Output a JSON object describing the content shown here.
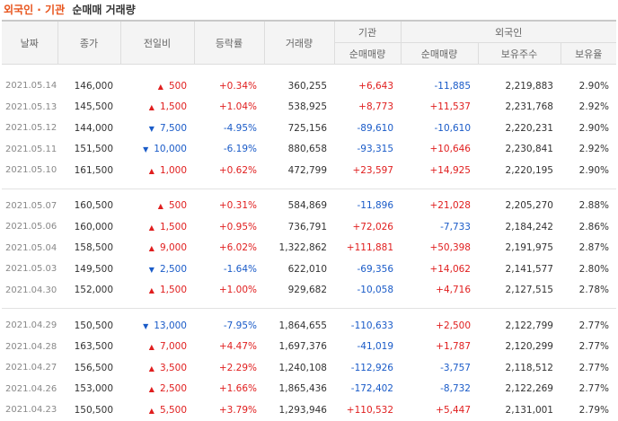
{
  "title": {
    "part1": "외국인 · 기관",
    "part2": "순매매 거래량"
  },
  "headers": {
    "date": "날짜",
    "close": "종가",
    "change": "전일비",
    "rate": "등락률",
    "volume": "거래량",
    "institution": "기관",
    "inst_net": "순매매량",
    "foreign": "외국인",
    "foreign_net": "순매매량",
    "holdings": "보유주수",
    "ratio": "보유율"
  },
  "colors": {
    "up": "#e01e1e",
    "down": "#1a5bc8",
    "accent_title": "#e8541c"
  },
  "groups": [
    {
      "rows": [
        {
          "date": "2021.05.14",
          "close": "146,000",
          "dir": "up",
          "change": "500",
          "rate": "+0.34%",
          "volume": "360,255",
          "inst": "+6,643",
          "foreign": "-11,885",
          "holdings": "2,219,883",
          "ratio": "2.90%"
        },
        {
          "date": "2021.05.13",
          "close": "145,500",
          "dir": "up",
          "change": "1,500",
          "rate": "+1.04%",
          "volume": "538,925",
          "inst": "+8,773",
          "foreign": "+11,537",
          "holdings": "2,231,768",
          "ratio": "2.92%"
        },
        {
          "date": "2021.05.12",
          "close": "144,000",
          "dir": "down",
          "change": "7,500",
          "rate": "-4.95%",
          "volume": "725,156",
          "inst": "-89,610",
          "foreign": "-10,610",
          "holdings": "2,220,231",
          "ratio": "2.90%"
        },
        {
          "date": "2021.05.11",
          "close": "151,500",
          "dir": "down",
          "change": "10,000",
          "rate": "-6.19%",
          "volume": "880,658",
          "inst": "-93,315",
          "foreign": "+10,646",
          "holdings": "2,230,841",
          "ratio": "2.92%"
        },
        {
          "date": "2021.05.10",
          "close": "161,500",
          "dir": "up",
          "change": "1,000",
          "rate": "+0.62%",
          "volume": "472,799",
          "inst": "+23,597",
          "foreign": "+14,925",
          "holdings": "2,220,195",
          "ratio": "2.90%"
        }
      ]
    },
    {
      "rows": [
        {
          "date": "2021.05.07",
          "close": "160,500",
          "dir": "up",
          "change": "500",
          "rate": "+0.31%",
          "volume": "584,869",
          "inst": "-11,896",
          "foreign": "+21,028",
          "holdings": "2,205,270",
          "ratio": "2.88%"
        },
        {
          "date": "2021.05.06",
          "close": "160,000",
          "dir": "up",
          "change": "1,500",
          "rate": "+0.95%",
          "volume": "736,791",
          "inst": "+72,026",
          "foreign": "-7,733",
          "holdings": "2,184,242",
          "ratio": "2.86%"
        },
        {
          "date": "2021.05.04",
          "close": "158,500",
          "dir": "up",
          "change": "9,000",
          "rate": "+6.02%",
          "volume": "1,322,862",
          "inst": "+111,881",
          "foreign": "+50,398",
          "holdings": "2,191,975",
          "ratio": "2.87%"
        },
        {
          "date": "2021.05.03",
          "close": "149,500",
          "dir": "down",
          "change": "2,500",
          "rate": "-1.64%",
          "volume": "622,010",
          "inst": "-69,356",
          "foreign": "+14,062",
          "holdings": "2,141,577",
          "ratio": "2.80%"
        },
        {
          "date": "2021.04.30",
          "close": "152,000",
          "dir": "up",
          "change": "1,500",
          "rate": "+1.00%",
          "volume": "929,682",
          "inst": "-10,058",
          "foreign": "+4,716",
          "holdings": "2,127,515",
          "ratio": "2.78%"
        }
      ]
    },
    {
      "rows": [
        {
          "date": "2021.04.29",
          "close": "150,500",
          "dir": "down",
          "change": "13,000",
          "rate": "-7.95%",
          "volume": "1,864,655",
          "inst": "-110,633",
          "foreign": "+2,500",
          "holdings": "2,122,799",
          "ratio": "2.77%"
        },
        {
          "date": "2021.04.28",
          "close": "163,500",
          "dir": "up",
          "change": "7,000",
          "rate": "+4.47%",
          "volume": "1,697,376",
          "inst": "-41,019",
          "foreign": "+1,787",
          "holdings": "2,120,299",
          "ratio": "2.77%"
        },
        {
          "date": "2021.04.27",
          "close": "156,500",
          "dir": "up",
          "change": "3,500",
          "rate": "+2.29%",
          "volume": "1,240,108",
          "inst": "-112,926",
          "foreign": "-3,757",
          "holdings": "2,118,512",
          "ratio": "2.77%"
        },
        {
          "date": "2021.04.26",
          "close": "153,000",
          "dir": "up",
          "change": "2,500",
          "rate": "+1.66%",
          "volume": "1,865,436",
          "inst": "-172,402",
          "foreign": "-8,732",
          "holdings": "2,122,269",
          "ratio": "2.77%"
        },
        {
          "date": "2021.04.23",
          "close": "150,500",
          "dir": "up",
          "change": "5,500",
          "rate": "+3.79%",
          "volume": "1,293,946",
          "inst": "+110,532",
          "foreign": "+5,447",
          "holdings": "2,131,001",
          "ratio": "2.79%"
        }
      ]
    }
  ]
}
